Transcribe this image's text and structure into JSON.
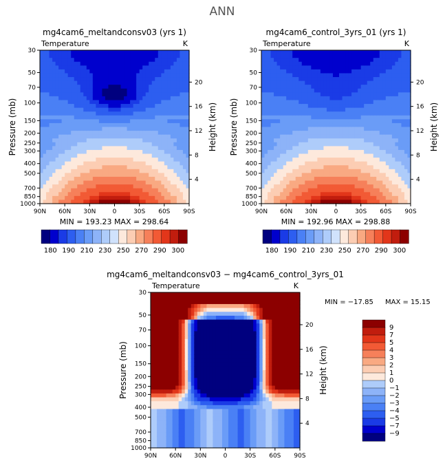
{
  "page_title": "ANN",
  "colors": {
    "scale": [
      "#00007f",
      "#0000cd",
      "#1a3be6",
      "#2d5ef0",
      "#4a80f5",
      "#6a9cf7",
      "#8db3f8",
      "#aeccfa",
      "#d0e2fc",
      "#fde9dc",
      "#fccdb3",
      "#f9a982",
      "#f6805a",
      "#f25a35",
      "#e2361a",
      "#c11d0e",
      "#8c0000"
    ],
    "gridline": "#000000"
  },
  "chart_data": [
    {
      "id": "top-left",
      "type": "heatmap",
      "title": "mg4cam6_meltandconsv03 (yrs 1)",
      "variable": "Temperature",
      "units": "K",
      "ylabel": "Pressure (mb)",
      "y2label": "Height (km)",
      "x_ticks": [
        "90N",
        "60N",
        "30N",
        "0",
        "30S",
        "60S",
        "90S"
      ],
      "y_ticks": [
        "30",
        "50",
        "70",
        "100",
        "150",
        "200",
        "250",
        "300",
        "400",
        "500",
        "700",
        "850",
        "1000"
      ],
      "y2_ticks": [
        "20",
        "16",
        "12",
        "8",
        "4"
      ],
      "min_label": "MIN = 193.23",
      "max_label": "MAX = 298.64",
      "colorbar_labels": [
        "180",
        "190",
        "210",
        "230",
        "250",
        "270",
        "290",
        "300"
      ]
    },
    {
      "id": "top-right",
      "type": "heatmap",
      "title": "mg4cam6_control_3yrs_01 (yrs 1)",
      "variable": "Temperature",
      "units": "K",
      "ylabel": "Pressure (mb)",
      "y2label": "Height (km)",
      "x_ticks": [
        "90N",
        "60N",
        "30N",
        "0",
        "30S",
        "60S",
        "90S"
      ],
      "y_ticks": [
        "30",
        "50",
        "70",
        "100",
        "150",
        "200",
        "250",
        "300",
        "400",
        "500",
        "700",
        "850",
        "1000"
      ],
      "y2_ticks": [
        "20",
        "16",
        "12",
        "8",
        "4"
      ],
      "min_label": "MIN = 192.96",
      "max_label": "MAX = 298.88",
      "colorbar_labels": [
        "180",
        "190",
        "210",
        "230",
        "250",
        "270",
        "290",
        "300"
      ]
    },
    {
      "id": "bottom",
      "type": "heatmap",
      "title": "mg4cam6_meltandconsv03 − mg4cam6_control_3yrs_01",
      "variable": "Temperature",
      "units": "K",
      "ylabel": "Pressure (mb)",
      "y2label": "Height (km)",
      "x_ticks": [
        "90N",
        "60N",
        "30N",
        "0",
        "30S",
        "60S",
        "90S"
      ],
      "y_ticks": [
        "30",
        "50",
        "70",
        "100",
        "150",
        "200",
        "250",
        "300",
        "400",
        "500",
        "700",
        "850",
        "1000"
      ],
      "y2_ticks": [
        "20",
        "16",
        "12",
        "8",
        "4"
      ],
      "min_label": "MIN = −17.85",
      "max_label": "MAX =  15.15",
      "colorbar_labels": [
        "9",
        "7",
        "5",
        "4",
        "3",
        "2",
        "1",
        "0",
        "−1",
        "−2",
        "−3",
        "−4",
        "−5",
        "−7",
        "−9"
      ]
    }
  ]
}
